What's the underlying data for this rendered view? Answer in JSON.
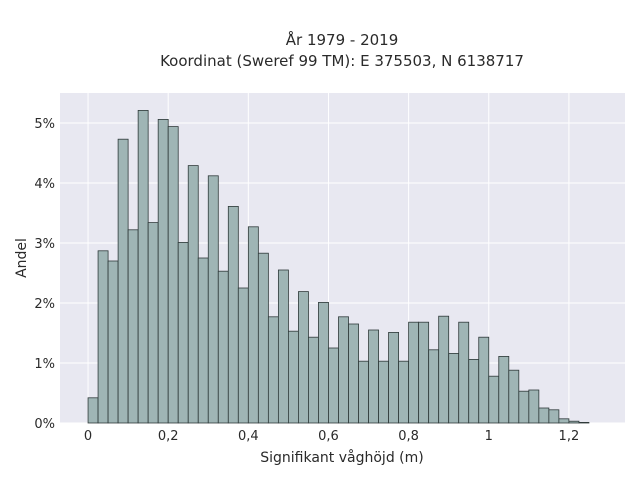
{
  "chart_data": {
    "type": "bar",
    "title_lines": [
      "År 1979 - 2019",
      "Koordinat (Sweref 99 TM): E 375503, N 6138717"
    ],
    "xlabel": "Signifikant våghöjd (m)",
    "ylabel": "Andel",
    "xlim": [
      -0.07,
      1.34
    ],
    "ylim": [
      0,
      5.5
    ],
    "x_ticks": [
      0,
      0.2,
      0.4,
      0.6,
      0.8,
      1,
      1.2
    ],
    "x_tick_labels": [
      "0",
      "0,2",
      "0,4",
      "0,6",
      "0,8",
      "1",
      "1,2"
    ],
    "y_ticks": [
      0,
      1,
      2,
      3,
      4,
      5
    ],
    "y_tick_labels": [
      "0%",
      "1%",
      "2%",
      "3%",
      "4%",
      "5%"
    ],
    "bin_width": 0.025,
    "bin_start": 0,
    "values": [
      0.42,
      2.87,
      2.7,
      4.73,
      3.22,
      5.21,
      3.34,
      5.06,
      4.94,
      3.01,
      4.29,
      2.75,
      4.12,
      2.53,
      3.61,
      2.25,
      3.27,
      2.83,
      1.77,
      2.55,
      1.53,
      2.19,
      1.43,
      2.01,
      1.25,
      1.77,
      1.65,
      1.03,
      1.55,
      1.03,
      1.51,
      1.03,
      1.68,
      1.68,
      1.22,
      1.78,
      1.16,
      1.68,
      1.06,
      1.43,
      0.78,
      1.11,
      0.88,
      0.53,
      0.55,
      0.25,
      0.22,
      0.07,
      0.03,
      0.01
    ],
    "grid": true,
    "colors": {
      "bar": "#9fb5b5",
      "edge": "#2f3a3a",
      "plot_bg": "#e8e8f1",
      "grid": "#ffffff"
    }
  }
}
